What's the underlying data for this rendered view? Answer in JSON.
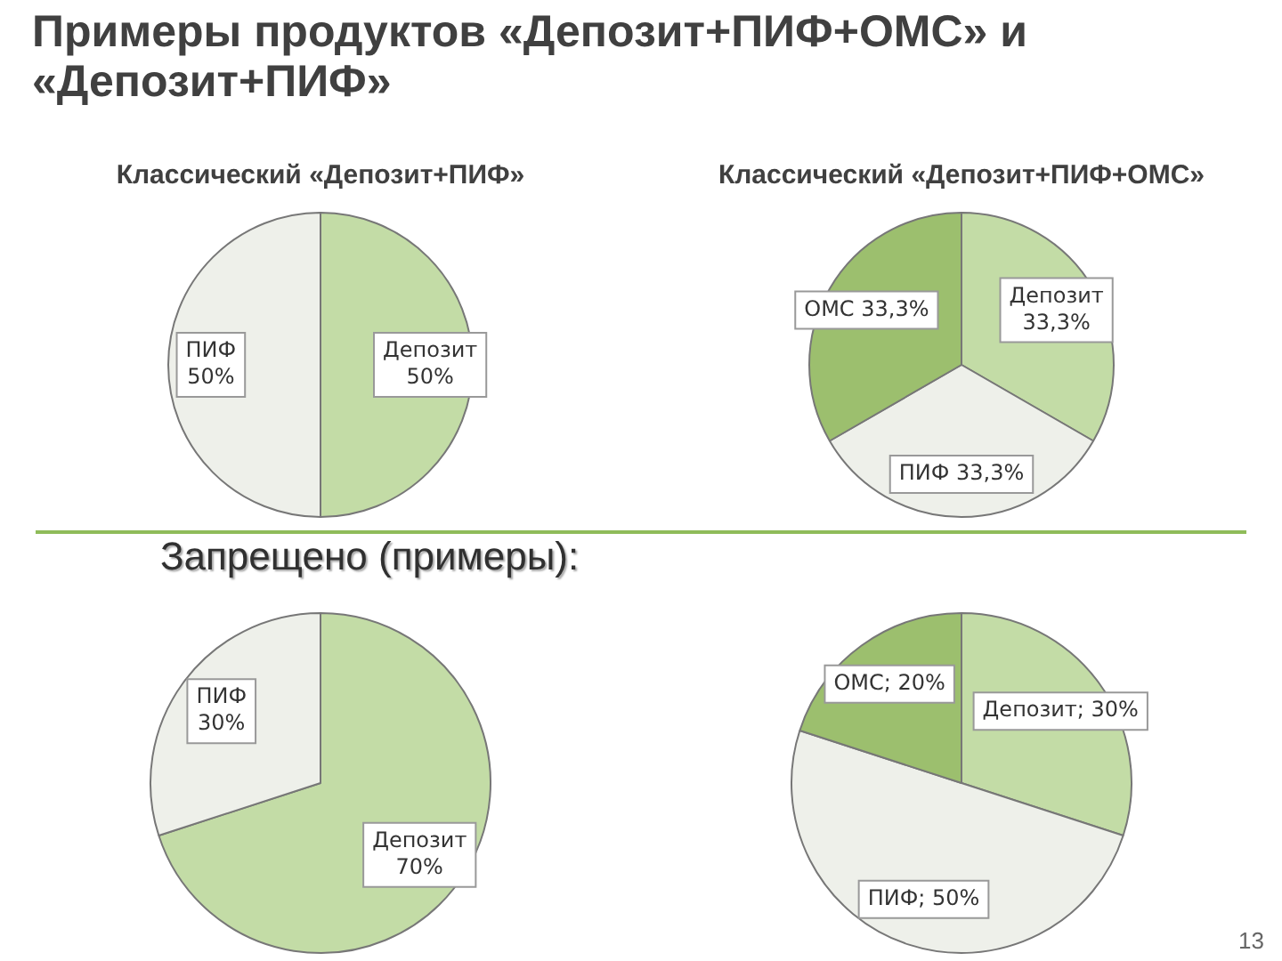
{
  "chart_data": [
    {
      "type": "pie",
      "title": "Примеры продуктов «Депозит+ПИФ+ОМС» и «Депозит+ПИФ»",
      "subtitle": "Классический «Депозит+ПИФ»",
      "categories": [
        "Депозит",
        "ПИФ"
      ],
      "values": [
        50,
        50
      ],
      "colors": [
        "#c3dca6",
        "#eef0ea"
      ],
      "value_labels": [
        "\n50%",
        "\n50%"
      ]
    },
    {
      "type": "pie",
      "subtitle": "Классический «Депозит+ПИФ+ОМС»",
      "categories": [
        "Депозит",
        "ПИФ",
        "ОМС"
      ],
      "values": [
        33.3,
        33.3,
        33.3
      ],
      "colors": [
        "#c3dca6",
        "#eef0ea",
        "#9cbf6e"
      ],
      "value_labels": [
        "\n33,3%",
        " 33,3%",
        " 33,3%"
      ]
    },
    {
      "type": "pie",
      "title": "Запрещено (примеры):",
      "categories": [
        "Депозит",
        "ПИФ"
      ],
      "values": [
        70,
        30
      ],
      "colors": [
        "#c3dca6",
        "#eef0ea"
      ],
      "value_labels": [
        "\n70%",
        "\n30%"
      ]
    },
    {
      "type": "pie",
      "categories": [
        "Депозит",
        "ПИФ",
        "ОМС"
      ],
      "values": [
        30,
        50,
        20
      ],
      "colors": [
        "#c3dca6",
        "#eef0ea",
        "#9cbf6e"
      ],
      "value_labels": [
        "; 30%",
        "; 50%",
        "; 20%"
      ],
      "annotations": [
        "13"
      ]
    }
  ]
}
